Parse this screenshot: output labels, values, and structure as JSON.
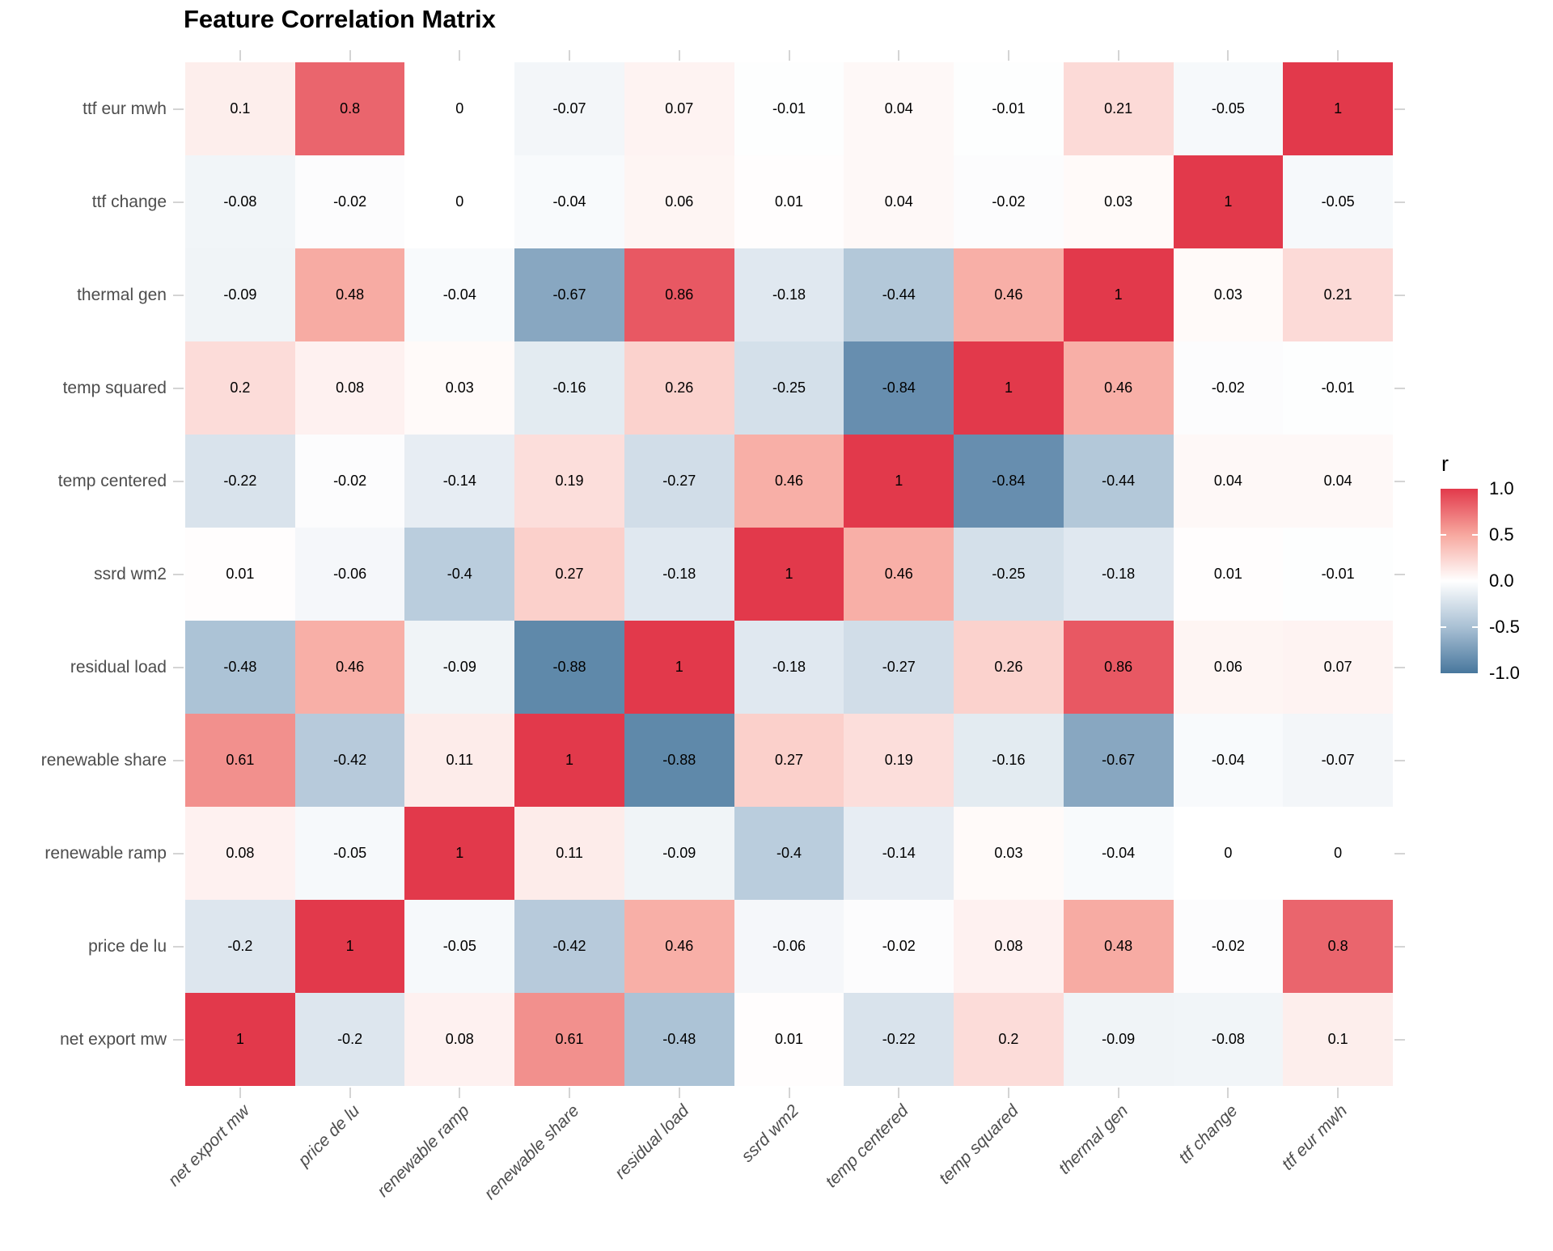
{
  "title": "Feature Correlation Matrix",
  "legend": {
    "title": "r",
    "tick_labels": [
      "1.0",
      "0.5",
      "0.0",
      "-0.5",
      "-1.0"
    ]
  },
  "colors": {
    "background": "#FFFFFF",
    "title_text": "#000000",
    "axis_text": "#4D4D4D",
    "tick_mark": "#D4D4D4",
    "value_text": "#000000",
    "scale_high": "#E2394B",
    "scale_mid_high": "#F7A89F",
    "scale_mid": "#FFFFFF",
    "scale_mid_low": "#A9C0D4",
    "scale_low": "#48779D"
  },
  "chart_data": {
    "type": "heatmap",
    "title": "Feature Correlation Matrix",
    "legend_title": "r",
    "legend_position": "right",
    "legend_ticks": [
      1.0,
      0.5,
      0.0,
      -0.5,
      -1.0
    ],
    "value_range": [
      -1,
      1
    ],
    "grid": false,
    "x_categories": [
      "net export mw",
      "price de lu",
      "renewable ramp",
      "renewable share",
      "residual load",
      "ssrd wm2",
      "temp centered",
      "temp squared",
      "thermal gen",
      "ttf change",
      "ttf eur mwh"
    ],
    "y_categories_top_to_bottom": [
      "ttf eur mwh",
      "ttf change",
      "thermal gen",
      "temp squared",
      "temp centered",
      "ssrd wm2",
      "residual load",
      "renewable share",
      "renewable ramp",
      "price de lu",
      "net export mw"
    ],
    "matrix_rows_top_to_bottom": [
      [
        0.1,
        0.8,
        0,
        -0.07,
        0.07,
        -0.01,
        0.04,
        -0.01,
        0.21,
        -0.05,
        1
      ],
      [
        -0.08,
        -0.02,
        0,
        -0.04,
        0.06,
        0.01,
        0.04,
        -0.02,
        0.03,
        1,
        -0.05
      ],
      [
        -0.09,
        0.48,
        -0.04,
        -0.67,
        0.86,
        -0.18,
        -0.44,
        0.46,
        1,
        0.03,
        0.21
      ],
      [
        0.2,
        0.08,
        0.03,
        -0.16,
        0.26,
        -0.25,
        -0.84,
        1,
        0.46,
        -0.02,
        -0.01
      ],
      [
        -0.22,
        -0.02,
        -0.14,
        0.19,
        -0.27,
        0.46,
        1,
        -0.84,
        -0.44,
        0.04,
        0.04
      ],
      [
        0.01,
        -0.06,
        -0.4,
        0.27,
        -0.18,
        1,
        0.46,
        -0.25,
        -0.18,
        0.01,
        -0.01
      ],
      [
        -0.48,
        0.46,
        -0.09,
        -0.88,
        1,
        -0.18,
        -0.27,
        0.26,
        0.86,
        0.06,
        0.07
      ],
      [
        0.61,
        -0.42,
        0.11,
        1,
        -0.88,
        0.27,
        0.19,
        -0.16,
        -0.67,
        -0.04,
        -0.07
      ],
      [
        0.08,
        -0.05,
        1,
        0.11,
        -0.09,
        -0.4,
        -0.14,
        0.03,
        -0.04,
        0,
        0
      ],
      [
        -0.2,
        1,
        -0.05,
        -0.42,
        0.46,
        -0.06,
        -0.02,
        0.08,
        0.48,
        -0.02,
        0.8
      ],
      [
        1,
        -0.2,
        0.08,
        0.61,
        -0.48,
        0.01,
        -0.22,
        0.2,
        -0.09,
        -0.08,
        0.1
      ]
    ],
    "color_scale_stops": [
      {
        "v": -1.0,
        "c": "#48779D"
      },
      {
        "v": -0.5,
        "c": "#A9C0D4"
      },
      {
        "v": 0.0,
        "c": "#FFFFFF"
      },
      {
        "v": 0.5,
        "c": "#F7A89F"
      },
      {
        "v": 1.0,
        "c": "#E2394B"
      }
    ]
  }
}
